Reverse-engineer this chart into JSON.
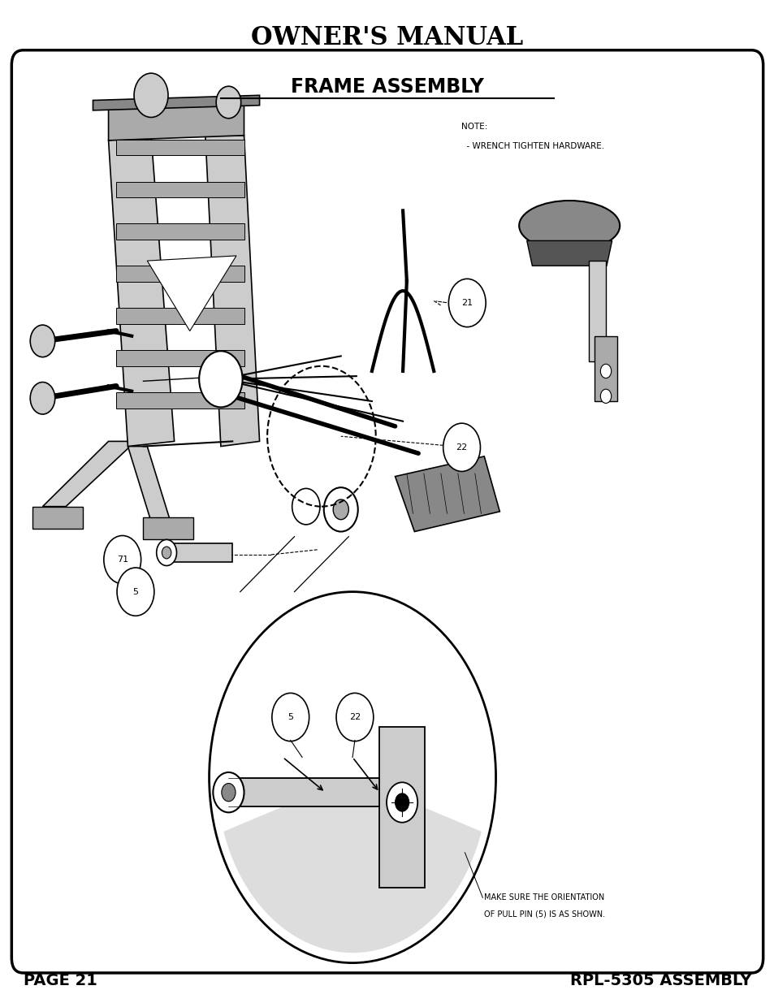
{
  "title": "OWNER'S MANUAL",
  "section_title": "FRAME ASSEMBLY",
  "page_label": "PAGE 21",
  "model_label": "RPL-5305 ASSEMBLY",
  "note_line1": "NOTE:",
  "note_line2": "  - WRENCH TIGHTEN HARDWARE.",
  "bottom_note_line1": "MAKE SURE THE ORIENTATION",
  "bottom_note_line2": "OF PULL PIN (5) IS AS SHOWN.",
  "bg_color": "#ffffff",
  "box_color": "#000000",
  "text_color": "#000000"
}
